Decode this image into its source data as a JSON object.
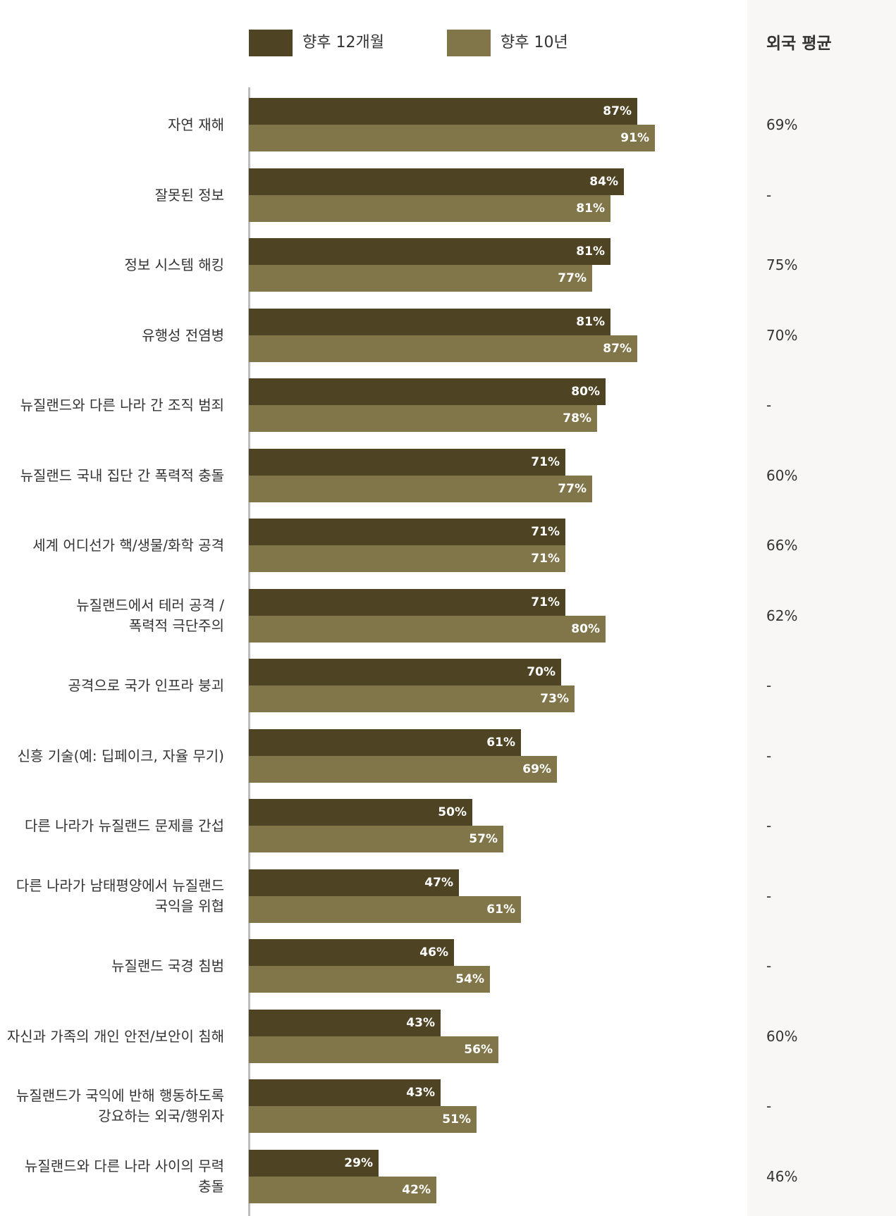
{
  "colors": {
    "series_12m": "#4e4424",
    "series_10y": "#817649",
    "sidebar_bg": "#f8f7f5"
  },
  "legend": {
    "series_12m_label": "향후 12개월",
    "series_10y_label": "향후 10년"
  },
  "sidebar": {
    "title": "외국 평균"
  },
  "chart_data": {
    "type": "bar",
    "orientation": "horizontal",
    "xlim": [
      0,
      100
    ],
    "categories": [
      "자연 재해",
      "잘못된 정보",
      "정보 시스템 해킹",
      "유행성 전염병",
      "뉴질랜드와 다른 나라 간 조직 범죄",
      "뉴질랜드 국내 집단 간 폭력적 충돌",
      "세계 어디선가 핵/생물/화학 공격",
      "뉴질랜드에서 테러 공격 /\n폭력적 극단주의",
      "공격으로 국가 인프라 붕괴",
      "신흥 기술(예: 딥페이크, 자율 무기)",
      "다른 나라가 뉴질랜드 문제를 간섭",
      "다른 나라가 남태평양에서 뉴질랜드\n국익을 위협",
      "뉴질랜드 국경 침범",
      "자신과 가족의 개인 안전/보안이 침해",
      "뉴질랜드가 국익에 반해 행동하도록\n강요하는 외국/행위자",
      "뉴질랜드와 다른 나라 사이의 무력\n충돌"
    ],
    "series": [
      {
        "name": "향후 12개월",
        "values": [
          87,
          84,
          81,
          81,
          80,
          71,
          71,
          71,
          70,
          61,
          50,
          47,
          46,
          43,
          43,
          29
        ]
      },
      {
        "name": "향후 10년",
        "values": [
          91,
          81,
          77,
          87,
          78,
          77,
          71,
          80,
          73,
          69,
          57,
          61,
          54,
          56,
          51,
          42
        ]
      }
    ],
    "value_labels_12m": [
      "87%",
      "84%",
      "81%",
      "81%",
      "80%",
      "71%",
      "71%",
      "71%",
      "70%",
      "61%",
      "50%",
      "47%",
      "46%",
      "43%",
      "43%",
      "29%"
    ],
    "value_labels_10y": [
      "91%",
      "81%",
      "77%",
      "87%",
      "78%",
      "77%",
      "71%",
      "80%",
      "73%",
      "69%",
      "57%",
      "61%",
      "54%",
      "56%",
      "51%",
      "42%"
    ],
    "foreign_average": [
      "69%",
      "-",
      "75%",
      "70%",
      "-",
      "60%",
      "66%",
      "62%",
      "-",
      "-",
      "-",
      "-",
      "-",
      "60%",
      "-",
      "46%"
    ]
  }
}
